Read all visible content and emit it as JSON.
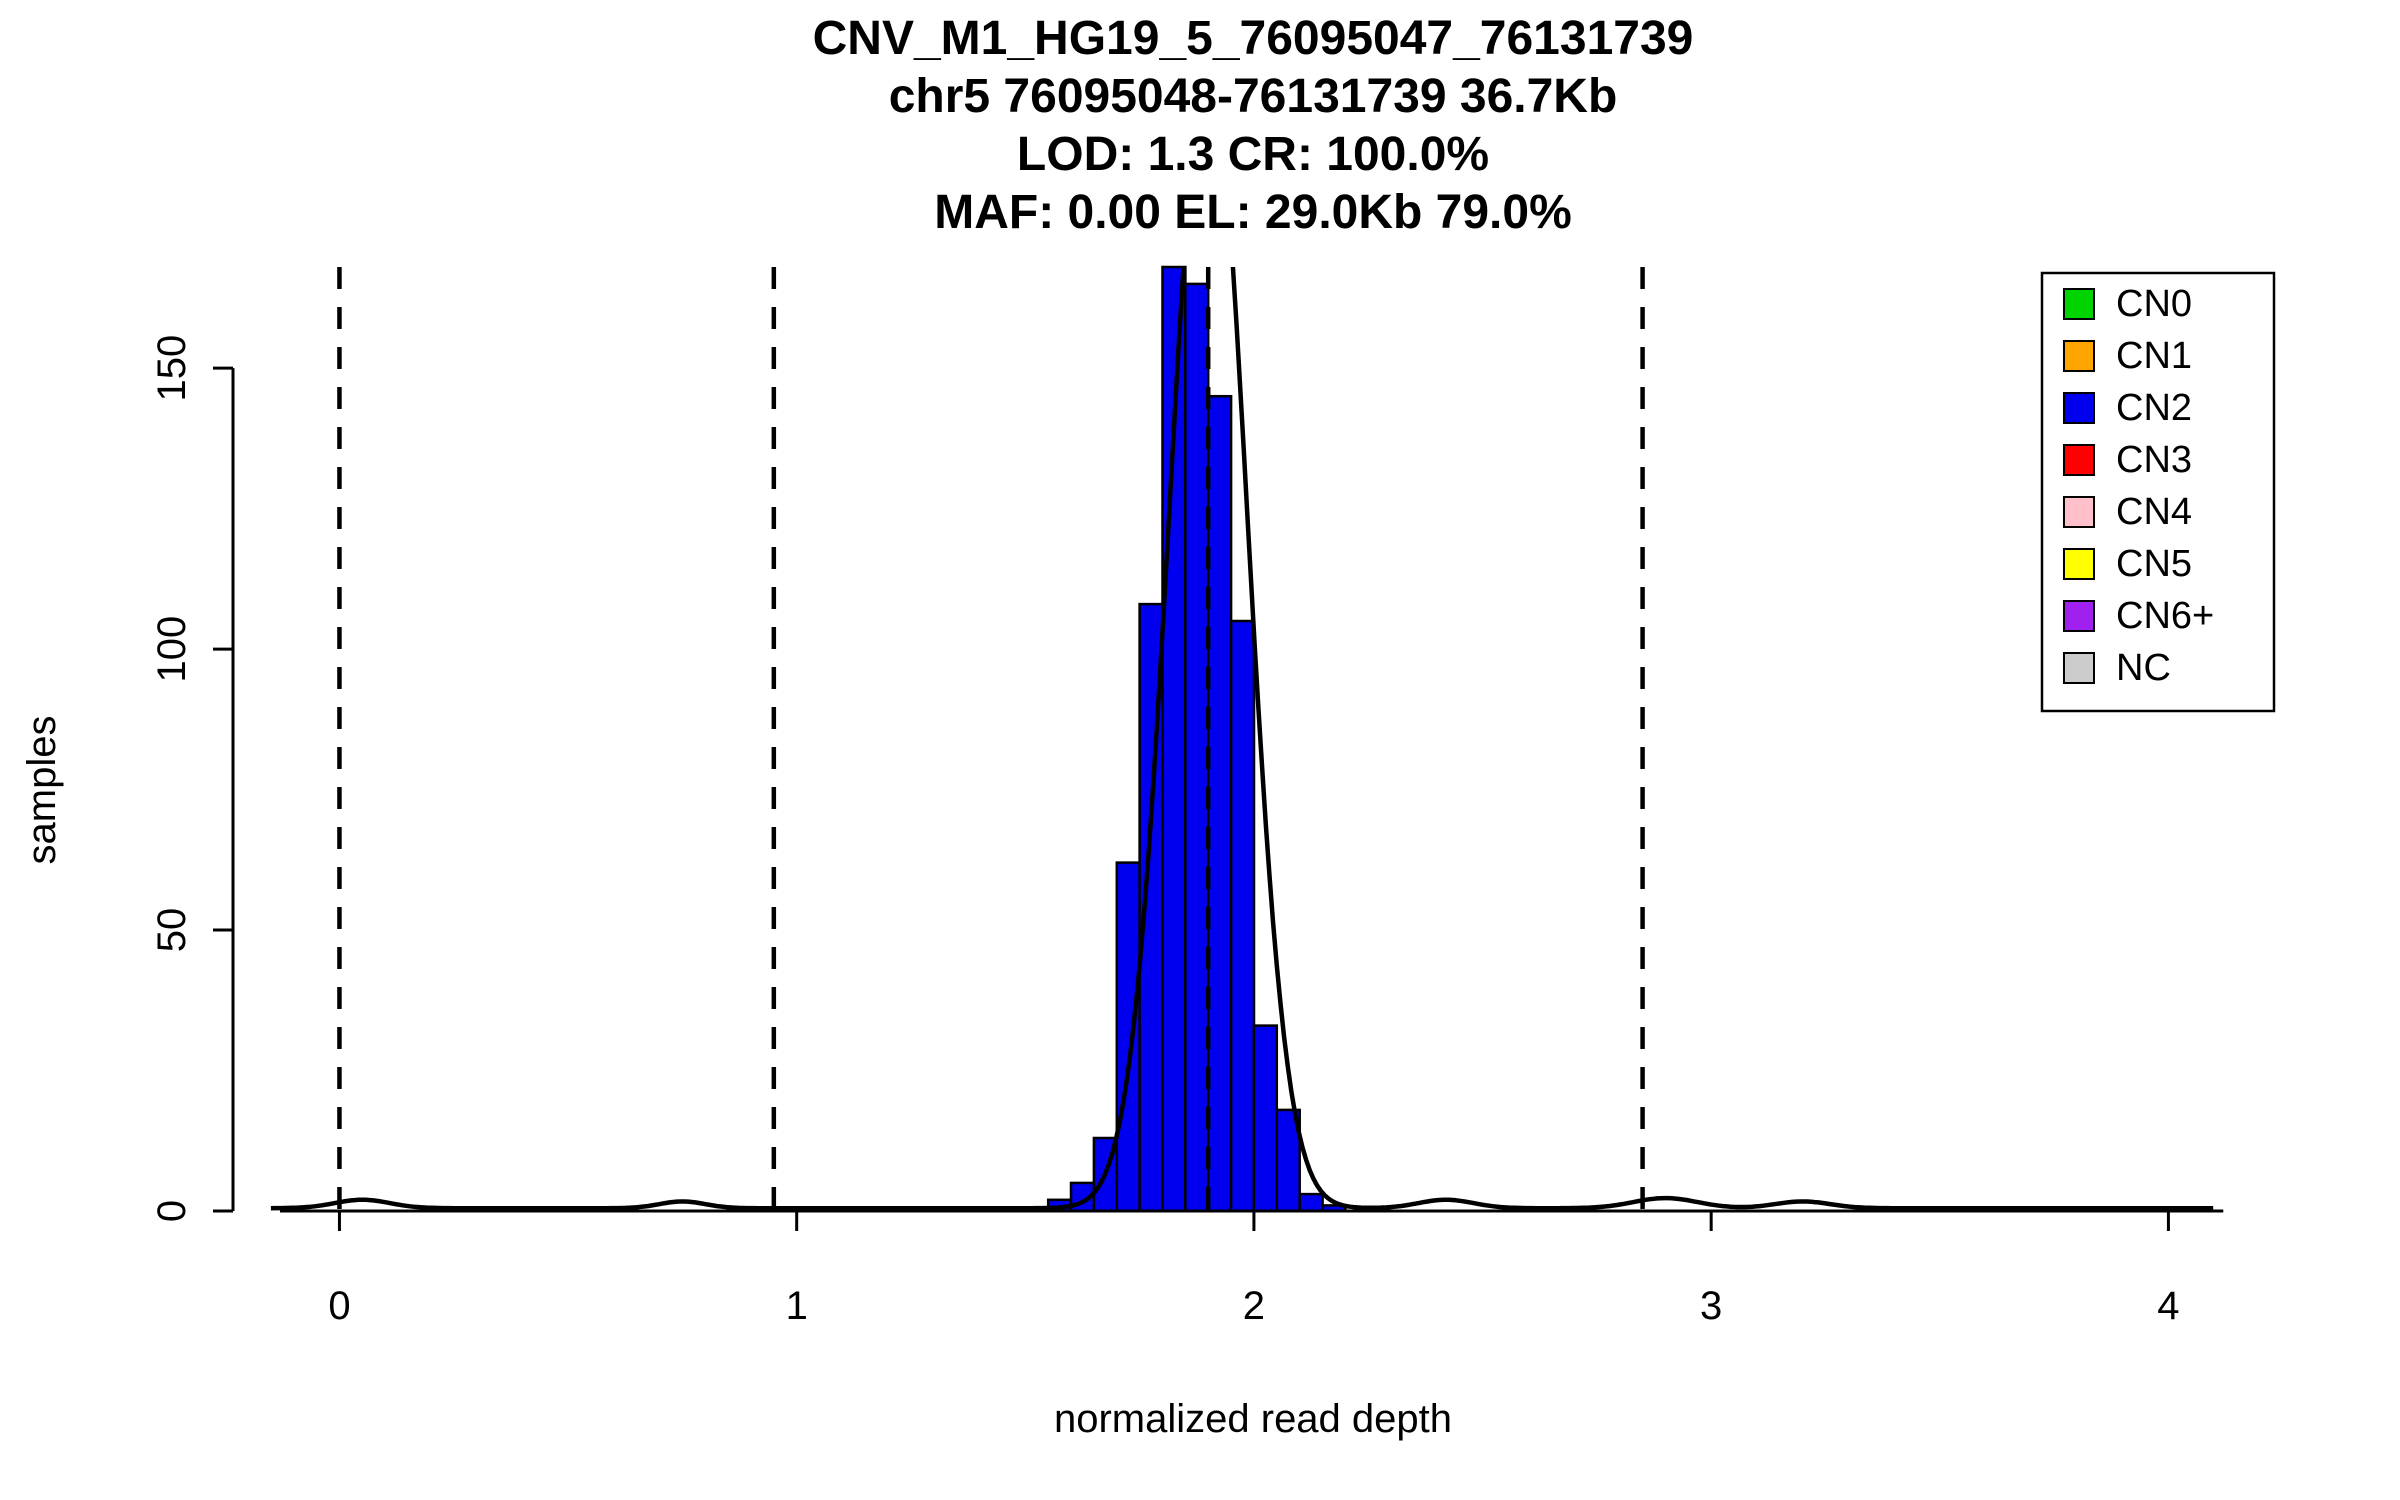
{
  "title_lines": [
    "CNV_M1_HG19_5_76095047_76131739",
    "chr5 76095048-76131739 36.7Kb",
    "LOD: 1.3 CR: 100.0%",
    "MAF: 0.00 EL: 29.0Kb 79.0%"
  ],
  "chart_data": {
    "type": "bar",
    "variant": "histogram-with-density",
    "title": "CNV_M1_HG19_5_76095047_76131739",
    "subtitle_lines": [
      "chr5 76095048-76131739 36.7Kb",
      "LOD: 1.3 CR: 100.0%",
      "MAF: 0.00 EL: 29.0Kb 79.0%"
    ],
    "xlabel": "normalized read depth",
    "ylabel": "samples",
    "xlim": [
      -0.2,
      4.15
    ],
    "ylim": [
      0,
      168
    ],
    "x_ticks": [
      0,
      1,
      2,
      3,
      4
    ],
    "y_ticks": [
      0,
      50,
      100,
      150
    ],
    "grid": false,
    "histogram": {
      "bin_start": 1.55,
      "bin_width": 0.05,
      "counts": [
        2,
        5,
        13,
        62,
        108,
        170,
        165,
        145,
        105,
        33,
        18,
        3,
        1
      ],
      "bar_fill": "#0000EE",
      "bar_stroke": "#000000"
    },
    "dashed_lines_x": [
      0,
      0.95,
      1.9,
      2.85
    ],
    "density_curve": {
      "color": "#000000",
      "baseline": 0.5,
      "x_range": [
        -0.15,
        4.1
      ],
      "components": [
        {
          "mean": 1.9,
          "sd": 0.085,
          "peak": 205
        },
        {
          "mean": 0.05,
          "sd": 0.06,
          "peak": 1.5
        },
        {
          "mean": 0.75,
          "sd": 0.05,
          "peak": 1.2
        },
        {
          "mean": 2.42,
          "sd": 0.06,
          "peak": 1.5
        },
        {
          "mean": 2.9,
          "sd": 0.07,
          "peak": 1.8
        },
        {
          "mean": 3.2,
          "sd": 0.06,
          "peak": 1.2
        }
      ]
    },
    "legend": {
      "position": "top-right",
      "items": [
        {
          "label": "CN0",
          "color": "#00D400"
        },
        {
          "label": "CN1",
          "color": "#FFA500"
        },
        {
          "label": "CN2",
          "color": "#0000EE"
        },
        {
          "label": "CN3",
          "color": "#FF0000"
        },
        {
          "label": "CN4",
          "color": "#FFC0CB"
        },
        {
          "label": "CN5",
          "color": "#FFFF00"
        },
        {
          "label": "CN6+",
          "color": "#A020F0"
        },
        {
          "label": "NC",
          "color": "#CCCCCC"
        }
      ]
    }
  }
}
